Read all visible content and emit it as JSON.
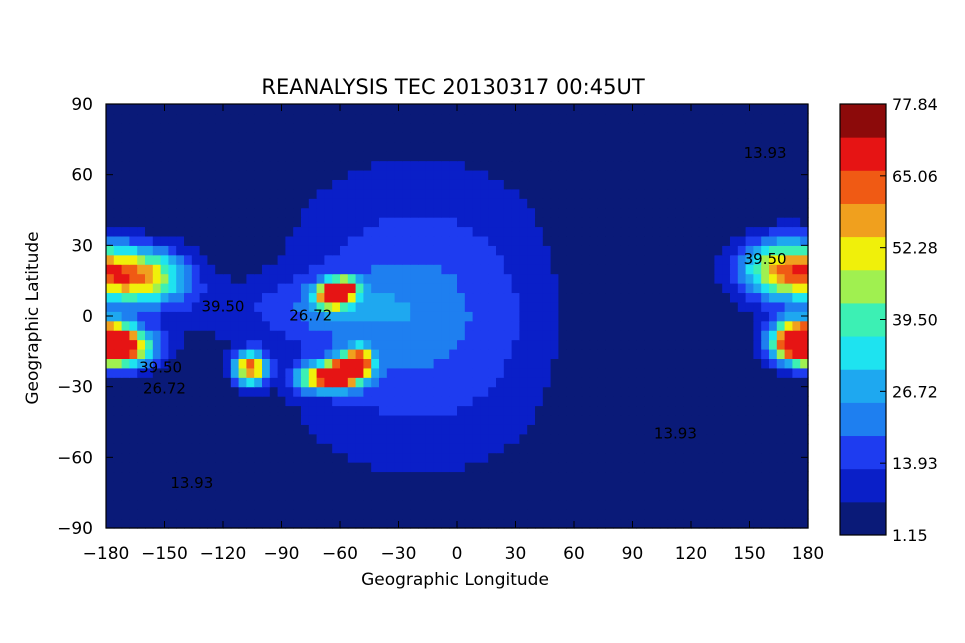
{
  "chart_data": {
    "type": "heatmap",
    "title": "REANALYSIS TEC 20130317 00:45UT",
    "xlabel": "Geographic Longitude",
    "ylabel": "Geographic Latitude",
    "xlim": [
      -180,
      180
    ],
    "ylim": [
      -90,
      90
    ],
    "x_ticks": [
      -180,
      -150,
      -120,
      -90,
      -60,
      -30,
      0,
      30,
      60,
      90,
      120,
      150,
      180
    ],
    "y_ticks": [
      -90,
      -60,
      -30,
      0,
      30,
      60,
      90
    ],
    "x_tick_labels": [
      "−180",
      "−150",
      "−120",
      "−90",
      "−60",
      "−30",
      "0",
      "30",
      "60",
      "90",
      "120",
      "150",
      "180"
    ],
    "y_tick_labels": [
      "−90",
      "−60",
      "−30",
      "0",
      "30",
      "60",
      "90"
    ],
    "colorbar": {
      "labels": [
        "77.84",
        "65.06",
        "52.28",
        "39.50",
        "26.72",
        "13.93",
        "1.15"
      ],
      "levels": [
        1.15,
        7.54,
        13.93,
        20.32,
        26.72,
        33.11,
        39.5,
        45.89,
        52.28,
        58.67,
        65.06,
        71.45,
        77.84
      ],
      "colors": [
        "#0a1a78",
        "#0a1fc8",
        "#1e3cf0",
        "#1e7ff0",
        "#1ea8f0",
        "#1ee3f0",
        "#3cf0b4",
        "#a0f050",
        "#f0f00a",
        "#f0a01e",
        "#f05a14",
        "#e61414",
        "#8c0a0a"
      ]
    },
    "contour_labels": [
      {
        "text": "39.50",
        "lon": -120,
        "lat": 2
      },
      {
        "text": "39.50",
        "lon": -152,
        "lat": -24
      },
      {
        "text": "26.72",
        "lon": -150,
        "lat": -33
      },
      {
        "text": "13.93",
        "lon": -136,
        "lat": -73
      },
      {
        "text": "13.93",
        "lon": 158,
        "lat": 67
      },
      {
        "text": "39.50",
        "lon": 158,
        "lat": 22
      },
      {
        "text": "13.93",
        "lon": 112,
        "lat": -52
      },
      {
        "text": "26.72",
        "lon": -75,
        "lat": -2
      }
    ],
    "gaussian_features": [
      {
        "lon": -173,
        "lat": -13,
        "amp": 74,
        "slon": 12,
        "slat": 6
      },
      {
        "lon": -162,
        "lat": 17,
        "amp": 55,
        "slon": 16,
        "slat": 8
      },
      {
        "lon": -106,
        "lat": -22,
        "amp": 66,
        "slon": 6,
        "slat": 5
      },
      {
        "lon": -68,
        "lat": -26,
        "amp": 58,
        "slon": 10,
        "slat": 4
      },
      {
        "lon": -57,
        "lat": -23,
        "amp": 55,
        "slon": 7,
        "slat": 4
      },
      {
        "lon": -50,
        "lat": -19,
        "amp": 52,
        "slon": 5,
        "slat": 4
      },
      {
        "lon": -64,
        "lat": 9,
        "amp": 62,
        "slon": 6,
        "slat": 4
      },
      {
        "lon": -57,
        "lat": 12,
        "amp": 50,
        "slon": 5,
        "slat": 3
      },
      {
        "lon": 168,
        "lat": 20,
        "amp": 56,
        "slon": 16,
        "slat": 9
      },
      {
        "lon": 175,
        "lat": -10,
        "amp": 74,
        "slon": 10,
        "slat": 6
      }
    ]
  }
}
